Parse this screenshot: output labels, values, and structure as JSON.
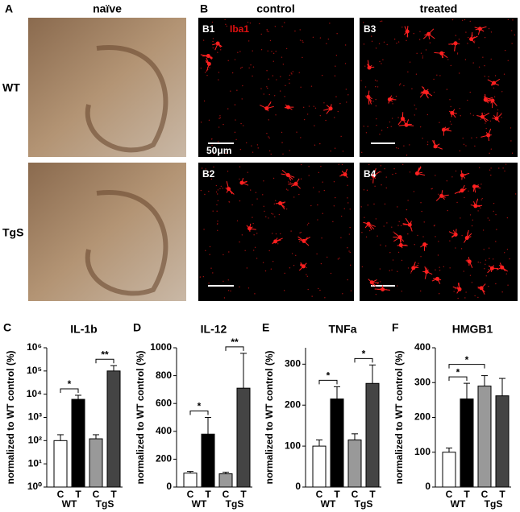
{
  "panels": {
    "a": {
      "letter": "A",
      "title": "naïve",
      "rows": [
        "WT",
        "TgS"
      ]
    },
    "b": {
      "letter": "B",
      "columns": [
        "control",
        "treated"
      ],
      "stain": "Iba1",
      "scale": "50μm",
      "images": [
        "B1",
        "B3",
        "B2",
        "B4"
      ]
    }
  },
  "chart_data": [
    {
      "type": "bar",
      "panel": "C",
      "title": "IL-1b",
      "y_label": "normalized to WT control (%)",
      "log_scale": true,
      "categories": [
        "C",
        "T",
        "C",
        "T"
      ],
      "groups": [
        "WT",
        "TgS"
      ],
      "values": [
        100,
        6000,
        120,
        100000
      ],
      "errors": [
        80,
        3000,
        60,
        70000
      ],
      "colors": [
        "#ffffff",
        "#000000",
        "#999999",
        "#444444"
      ],
      "ylim": [
        1,
        1000000
      ],
      "yticks": [
        {
          "value": 1,
          "label": "10⁰"
        },
        {
          "value": 10,
          "label": "10¹"
        },
        {
          "value": 100,
          "label": "10²"
        },
        {
          "value": 1000,
          "label": "10³"
        },
        {
          "value": 10000,
          "label": "10⁴"
        },
        {
          "value": 100000,
          "label": "10⁵"
        },
        {
          "value": 1000000,
          "label": "10⁶"
        }
      ],
      "brackets": [
        {
          "label": "*",
          "bars": [
            0,
            1
          ]
        },
        {
          "label": "**",
          "bars": [
            2,
            3
          ]
        }
      ]
    },
    {
      "type": "bar",
      "panel": "D",
      "title": "IL-12",
      "y_label": "normalized to WT control (%)",
      "log_scale": false,
      "categories": [
        "C",
        "T",
        "C",
        "T"
      ],
      "groups": [
        "WT",
        "TgS"
      ],
      "values": [
        100,
        380,
        95,
        710
      ],
      "errors": [
        12,
        120,
        12,
        250
      ],
      "colors": [
        "#ffffff",
        "#000000",
        "#999999",
        "#444444"
      ],
      "ylim": [
        0,
        1000
      ],
      "yticks": [
        0,
        200,
        400,
        600,
        800,
        1000
      ],
      "brackets": [
        {
          "label": "*",
          "bars": [
            0,
            1
          ]
        },
        {
          "label": "**",
          "bars": [
            2,
            3
          ]
        }
      ]
    },
    {
      "type": "bar",
      "panel": "E",
      "title": "TNFa",
      "y_label": "normalized to WT control (%)",
      "log_scale": false,
      "categories": [
        "C",
        "T",
        "C",
        "T"
      ],
      "groups": [
        "WT",
        "TgS"
      ],
      "values": [
        100,
        215,
        115,
        253
      ],
      "errors": [
        15,
        30,
        15,
        45
      ],
      "colors": [
        "#ffffff",
        "#000000",
        "#999999",
        "#444444"
      ],
      "ylim": [
        0,
        340
      ],
      "yticks": [
        0,
        100,
        200,
        300
      ],
      "brackets": [
        {
          "label": "*",
          "bars": [
            0,
            1
          ]
        },
        {
          "label": "*",
          "bars": [
            2,
            3
          ]
        }
      ]
    },
    {
      "type": "bar",
      "panel": "F",
      "title": "HMGB1",
      "y_label": "normalized to WT control (%)",
      "log_scale": false,
      "categories": [
        "C",
        "T",
        "C",
        "T"
      ],
      "groups": [
        "WT",
        "TgS"
      ],
      "values": [
        100,
        253,
        290,
        262
      ],
      "errors": [
        12,
        45,
        30,
        50
      ],
      "colors": [
        "#ffffff",
        "#000000",
        "#999999",
        "#444444"
      ],
      "ylim": [
        0,
        400
      ],
      "yticks": [
        0,
        100,
        200,
        300,
        400
      ],
      "brackets": [
        {
          "label": "*",
          "bars": [
            0,
            1
          ]
        },
        {
          "label": "*",
          "bars": [
            0,
            2
          ]
        }
      ]
    }
  ]
}
